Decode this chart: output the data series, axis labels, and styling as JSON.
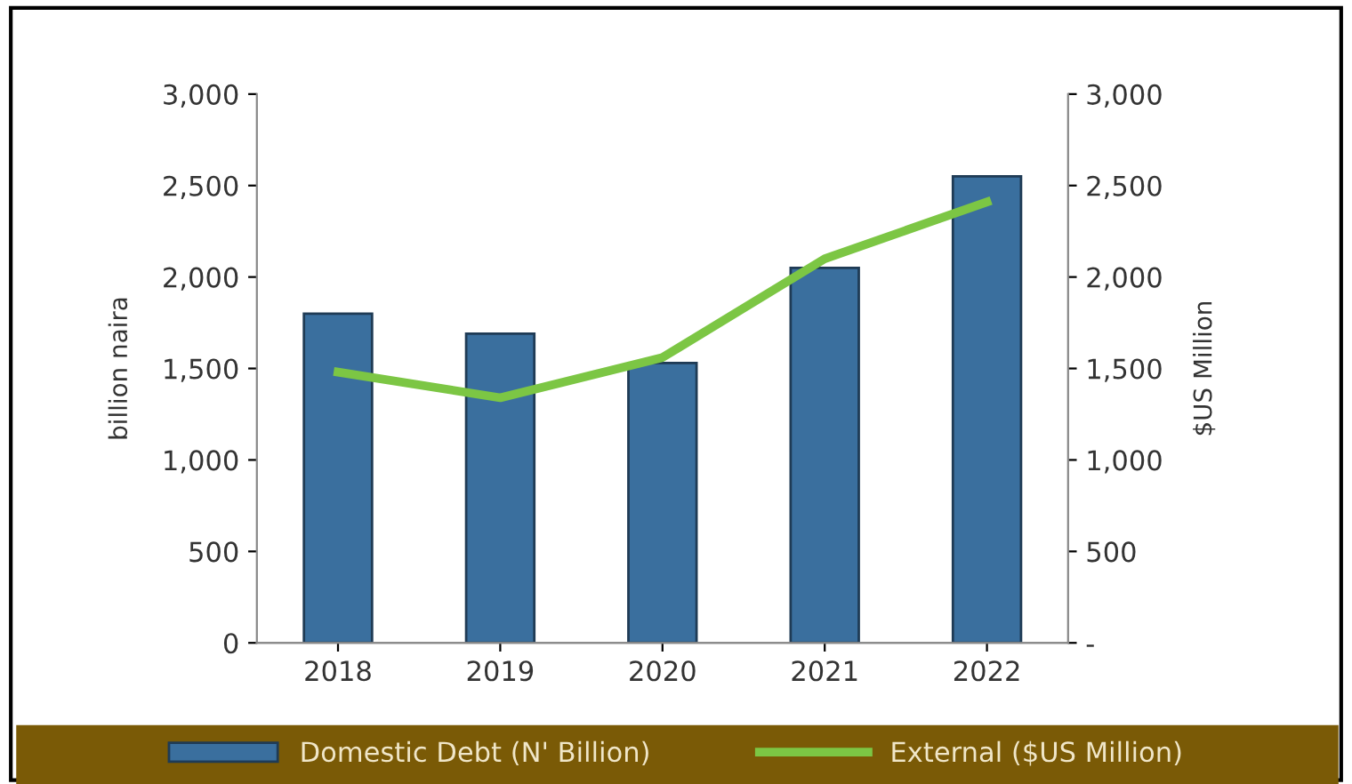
{
  "chart_data": {
    "type": "bar",
    "categories": [
      "2018",
      "2019",
      "2020",
      "2021",
      "2022"
    ],
    "ylabel": "billion naira",
    "y2label": "$US Million",
    "ylim": [
      0,
      3000
    ],
    "yticks": [
      {
        "value": 0,
        "label": "0"
      },
      {
        "value": 500,
        "label": "500"
      },
      {
        "value": 1000,
        "label": "1,000"
      },
      {
        "value": 1500,
        "label": "1,500"
      },
      {
        "value": 2000,
        "label": "2,000"
      },
      {
        "value": 2500,
        "label": "2,500"
      },
      {
        "value": 3000,
        "label": "3,000"
      }
    ],
    "y2lim": [
      0,
      3000
    ],
    "y2ticks": [
      {
        "value": 0,
        "label": "-"
      },
      {
        "value": 500,
        "label": "500"
      },
      {
        "value": 1000,
        "label": "1,000"
      },
      {
        "value": 1500,
        "label": "1,500"
      },
      {
        "value": 2000,
        "label": "2,000"
      },
      {
        "value": 2500,
        "label": "2,500"
      },
      {
        "value": 3000,
        "label": "3,000"
      }
    ],
    "series": [
      {
        "name": "Domestic Debt (N' Billion)",
        "color": "#3a6f9e",
        "values": [
          1800,
          1690,
          1530,
          2050,
          2550
        ]
      },
      {
        "name": "External ($US Million)",
        "type": "line",
        "axis": "y2",
        "color": "#7cc644",
        "values": [
          1480,
          1340,
          1560,
          2100,
          2410
        ]
      }
    ],
    "grid": false,
    "legend": "bottom",
    "marker": "none",
    "line_style": "solid"
  }
}
